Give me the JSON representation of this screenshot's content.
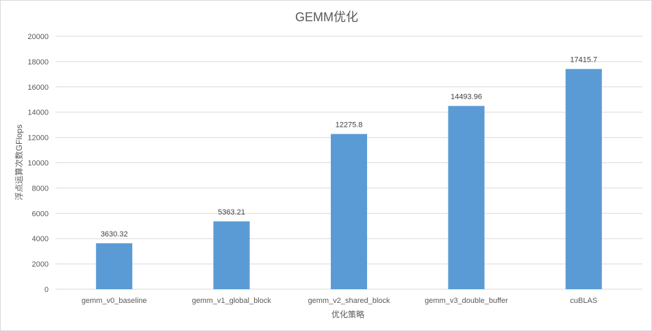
{
  "chart_data": {
    "type": "bar",
    "title": "GEMM优化",
    "xlabel": "优化策略",
    "ylabel": "浮点运算次数GFlops",
    "categories": [
      "gemm_v0_baseline",
      "gemm_v1_global_block",
      "gemm_v2_shared_block",
      "gemm_v3_double_buffer",
      "cuBLAS"
    ],
    "values": [
      3630.32,
      5363.21,
      12275.8,
      14493.96,
      17415.7
    ],
    "value_labels": [
      "3630.32",
      "5363.21",
      "12275.8",
      "14493.96",
      "17415.7"
    ],
    "ylim": [
      0,
      20000
    ],
    "yticks": [
      "0",
      "2000",
      "4000",
      "6000",
      "8000",
      "10000",
      "12000",
      "14000",
      "16000",
      "18000",
      "20000"
    ],
    "grid": true,
    "legend": "none",
    "colors": {
      "bar": "#5b9bd5",
      "grid": "#d9d9d9",
      "text": "#595959"
    }
  }
}
